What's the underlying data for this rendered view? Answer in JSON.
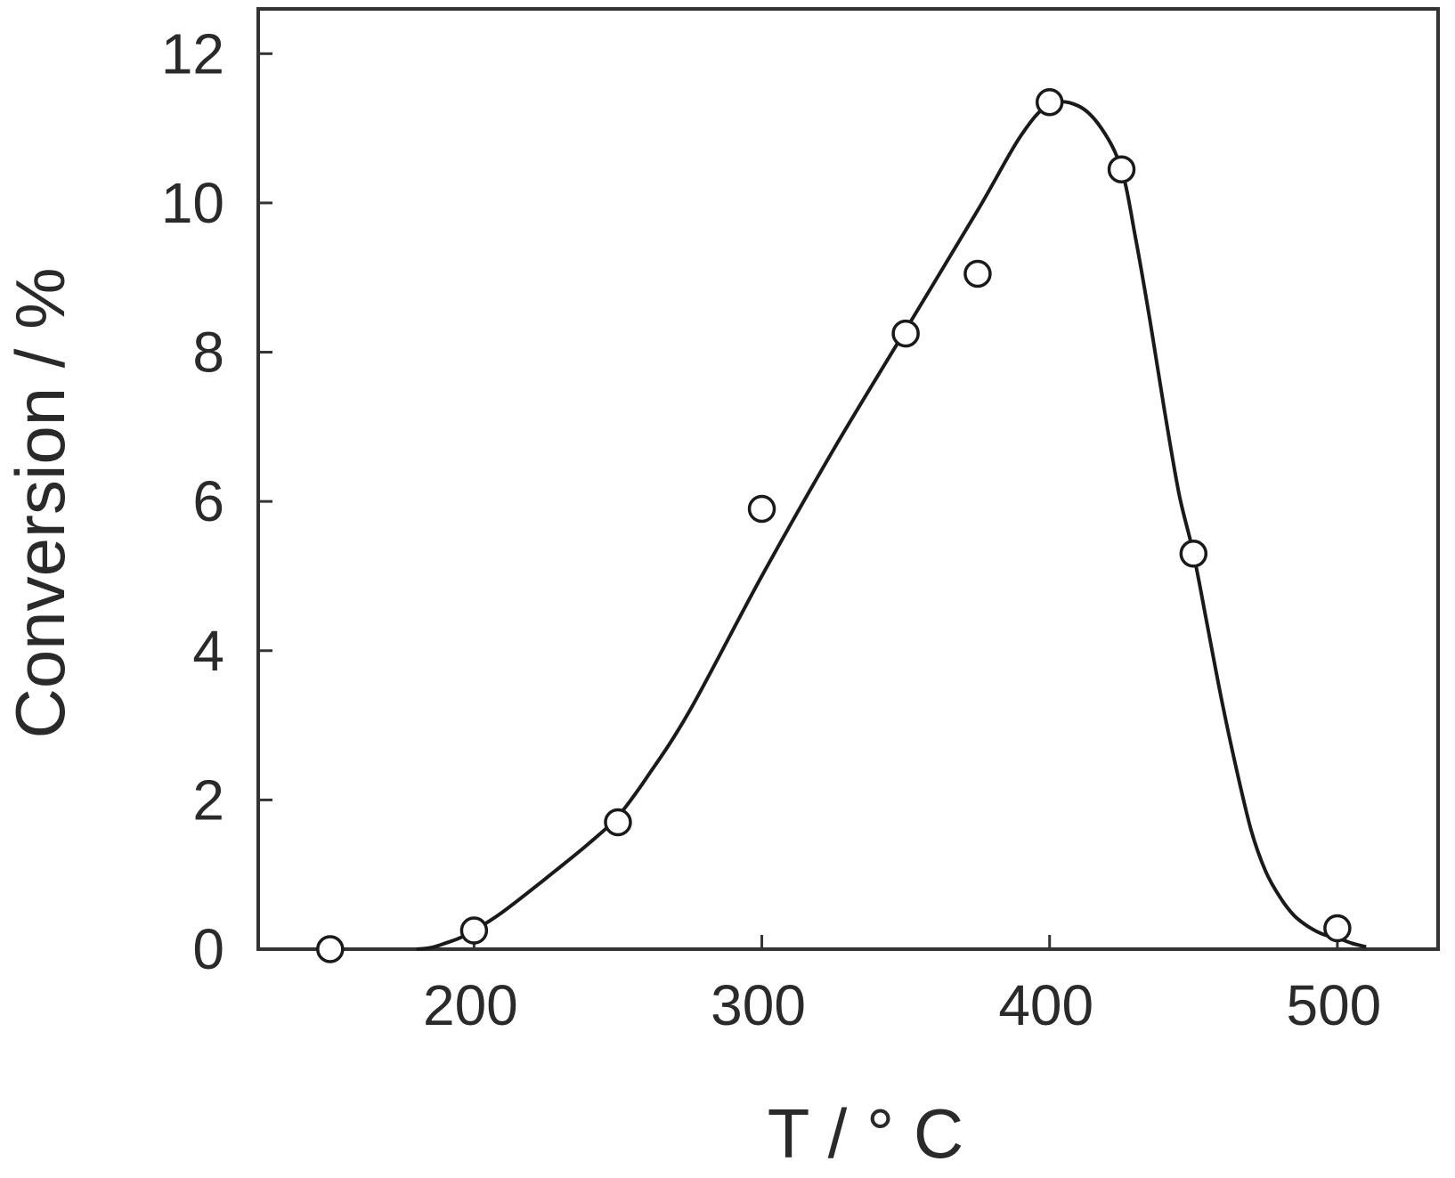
{
  "chart_data": {
    "type": "scatter",
    "title": "",
    "xlabel": "T / ° C",
    "ylabel": "Conversion / %",
    "xlim": [
      125,
      535
    ],
    "ylim": [
      0,
      12.6
    ],
    "xticks": [
      200,
      300,
      400,
      500
    ],
    "yticks": [
      0,
      2,
      4,
      6,
      8,
      10,
      12
    ],
    "grid": false,
    "legend": "none",
    "colors": {
      "line": "#1a1a1a",
      "marker_fill": "#ffffff",
      "frame": "#333333",
      "text": "#2a2a2a"
    },
    "series": [
      {
        "kind": "markers",
        "marker": "open-circle",
        "x": [
          150,
          200,
          250,
          300,
          350,
          375,
          400,
          425,
          450,
          500
        ],
        "y": [
          0.0,
          0.25,
          1.7,
          5.9,
          8.25,
          9.05,
          11.35,
          10.45,
          5.3,
          0.28
        ]
      },
      {
        "kind": "smooth-curve",
        "x": [
          180,
          185,
          190,
          195,
          200,
          210,
          225,
          240,
          250,
          260,
          275,
          300,
          325,
          350,
          375,
          390,
          400,
          410,
          418,
          425,
          430,
          435,
          440,
          445,
          450,
          455,
          460,
          465,
          470,
          475,
          480,
          485,
          490,
          495,
          500,
          505,
          510
        ],
        "y": [
          0.0,
          0.02,
          0.08,
          0.15,
          0.25,
          0.5,
          0.95,
          1.42,
          1.78,
          2.3,
          3.2,
          5.0,
          6.7,
          8.3,
          9.9,
          10.9,
          11.32,
          11.3,
          11.0,
          10.45,
          9.5,
          8.4,
          7.2,
          6.1,
          5.3,
          4.3,
          3.3,
          2.4,
          1.6,
          1.05,
          0.7,
          0.45,
          0.3,
          0.2,
          0.15,
          0.08,
          0.03
        ]
      }
    ]
  }
}
